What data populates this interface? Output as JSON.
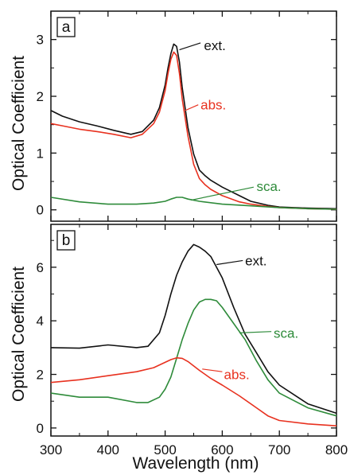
{
  "figure": {
    "xlabel": "Wavelength (nm)",
    "ylabel": "Optical Coefficient"
  },
  "colors": {
    "ext": "#111111",
    "abs": "#e8311f",
    "sca": "#2e8b3a",
    "axis": "#111111"
  },
  "chart_data": [
    {
      "type": "line",
      "panel_label": "a",
      "xlabel": "",
      "ylabel": "Optical Coefficient",
      "xlim": [
        300,
        800
      ],
      "ylim": [
        -0.2,
        3.5
      ],
      "xticks": [
        300,
        400,
        500,
        600,
        700,
        800
      ],
      "xtick_labels": [],
      "yticks": [
        0,
        1,
        2,
        3
      ],
      "ytick_labels": [
        "0",
        "1",
        "2",
        "3"
      ],
      "grid": false,
      "series": [
        {
          "name": "ext.",
          "color_key": "ext",
          "x": [
            300,
            320,
            350,
            380,
            410,
            440,
            460,
            480,
            490,
            500,
            505,
            510,
            515,
            520,
            525,
            530,
            540,
            550,
            560,
            570,
            580,
            600,
            630,
            650,
            680,
            700,
            750,
            800
          ],
          "y": [
            1.75,
            1.65,
            1.55,
            1.48,
            1.4,
            1.33,
            1.38,
            1.58,
            1.8,
            2.2,
            2.5,
            2.75,
            2.92,
            2.88,
            2.6,
            2.15,
            1.45,
            0.98,
            0.7,
            0.6,
            0.52,
            0.4,
            0.25,
            0.15,
            0.08,
            0.05,
            0.03,
            0.02
          ]
        },
        {
          "name": "abs.",
          "color_key": "abs",
          "x": [
            300,
            320,
            350,
            380,
            410,
            440,
            460,
            480,
            490,
            500,
            505,
            510,
            515,
            520,
            525,
            530,
            540,
            550,
            560,
            570,
            580,
            600,
            630,
            650,
            680,
            700,
            750,
            800
          ],
          "y": [
            1.52,
            1.48,
            1.42,
            1.38,
            1.33,
            1.27,
            1.33,
            1.52,
            1.72,
            2.1,
            2.4,
            2.65,
            2.78,
            2.72,
            2.4,
            1.95,
            1.3,
            0.8,
            0.55,
            0.44,
            0.36,
            0.25,
            0.14,
            0.1,
            0.06,
            0.04,
            0.02,
            0.01
          ]
        },
        {
          "name": "sca.",
          "color_key": "sca",
          "x": [
            300,
            350,
            400,
            450,
            480,
            500,
            510,
            520,
            530,
            540,
            560,
            600,
            650,
            700,
            750,
            800
          ],
          "y": [
            0.22,
            0.14,
            0.1,
            0.1,
            0.12,
            0.15,
            0.19,
            0.22,
            0.22,
            0.19,
            0.15,
            0.1,
            0.07,
            0.04,
            0.02,
            0.01
          ]
        }
      ],
      "labels": [
        {
          "text": "ext.",
          "color_key": "ext",
          "x": 568,
          "y": 2.9,
          "pointer": [
            [
              562,
              2.94
            ],
            [
              525,
              2.82
            ]
          ]
        },
        {
          "text": "abs.",
          "color_key": "abs",
          "x": 562,
          "y": 1.85,
          "pointer": [
            [
              558,
              1.85
            ],
            [
              535,
              1.75
            ]
          ]
        },
        {
          "text": "sca.",
          "color_key": "sca",
          "x": 660,
          "y": 0.42,
          "pointer": [
            [
              655,
              0.4
            ],
            [
              545,
              0.17
            ]
          ]
        }
      ]
    },
    {
      "type": "line",
      "panel_label": "b",
      "xlabel": "Wavelength (nm)",
      "ylabel": "Optical Coefficient",
      "xlim": [
        300,
        800
      ],
      "ylim": [
        -0.3,
        7.6
      ],
      "xticks": [
        300,
        400,
        500,
        600,
        700,
        800
      ],
      "xtick_labels": [
        "300",
        "400",
        "500",
        "600",
        "700",
        "800"
      ],
      "yticks": [
        0,
        2,
        4,
        6
      ],
      "ytick_labels": [
        "0",
        "2",
        "4",
        "6"
      ],
      "grid": false,
      "series": [
        {
          "name": "ext.",
          "color_key": "ext",
          "x": [
            300,
            350,
            400,
            450,
            470,
            490,
            500,
            510,
            520,
            530,
            540,
            550,
            560,
            570,
            580,
            600,
            620,
            640,
            660,
            680,
            700,
            750,
            800
          ],
          "y": [
            3.0,
            2.98,
            3.1,
            3.0,
            3.05,
            3.55,
            4.2,
            5.0,
            5.7,
            6.2,
            6.6,
            6.85,
            6.75,
            6.6,
            6.4,
            5.6,
            4.5,
            3.5,
            2.8,
            2.1,
            1.6,
            0.9,
            0.55
          ]
        },
        {
          "name": "sca.",
          "color_key": "sca",
          "x": [
            300,
            350,
            400,
            450,
            470,
            490,
            500,
            510,
            520,
            530,
            540,
            550,
            560,
            570,
            580,
            590,
            600,
            620,
            640,
            660,
            680,
            700,
            750,
            800
          ],
          "y": [
            1.3,
            1.15,
            1.15,
            0.95,
            0.95,
            1.15,
            1.45,
            1.9,
            2.6,
            3.3,
            3.9,
            4.4,
            4.7,
            4.8,
            4.8,
            4.75,
            4.5,
            3.9,
            3.3,
            2.5,
            1.8,
            1.3,
            0.75,
            0.45
          ]
        },
        {
          "name": "abs.",
          "color_key": "abs",
          "x": [
            300,
            350,
            400,
            450,
            480,
            500,
            510,
            520,
            530,
            540,
            560,
            580,
            600,
            630,
            660,
            680,
            700,
            750,
            800
          ],
          "y": [
            1.7,
            1.8,
            1.95,
            2.1,
            2.25,
            2.45,
            2.55,
            2.62,
            2.6,
            2.48,
            2.15,
            1.85,
            1.6,
            1.2,
            0.75,
            0.45,
            0.28,
            0.15,
            0.08
          ]
        }
      ],
      "labels": [
        {
          "text": "ext.",
          "color_key": "ext",
          "x": 640,
          "y": 6.25,
          "pointer": [
            [
              636,
              6.25
            ],
            [
              590,
              6.1
            ]
          ]
        },
        {
          "text": "sca.",
          "color_key": "sca",
          "x": 690,
          "y": 3.55,
          "pointer": [
            [
              686,
              3.6
            ],
            [
              630,
              3.55
            ]
          ]
        },
        {
          "text": "abs.",
          "color_key": "abs",
          "x": 603,
          "y": 2.0,
          "pointer": [
            [
              600,
              2.1
            ],
            [
              565,
              2.2
            ]
          ]
        }
      ]
    }
  ]
}
